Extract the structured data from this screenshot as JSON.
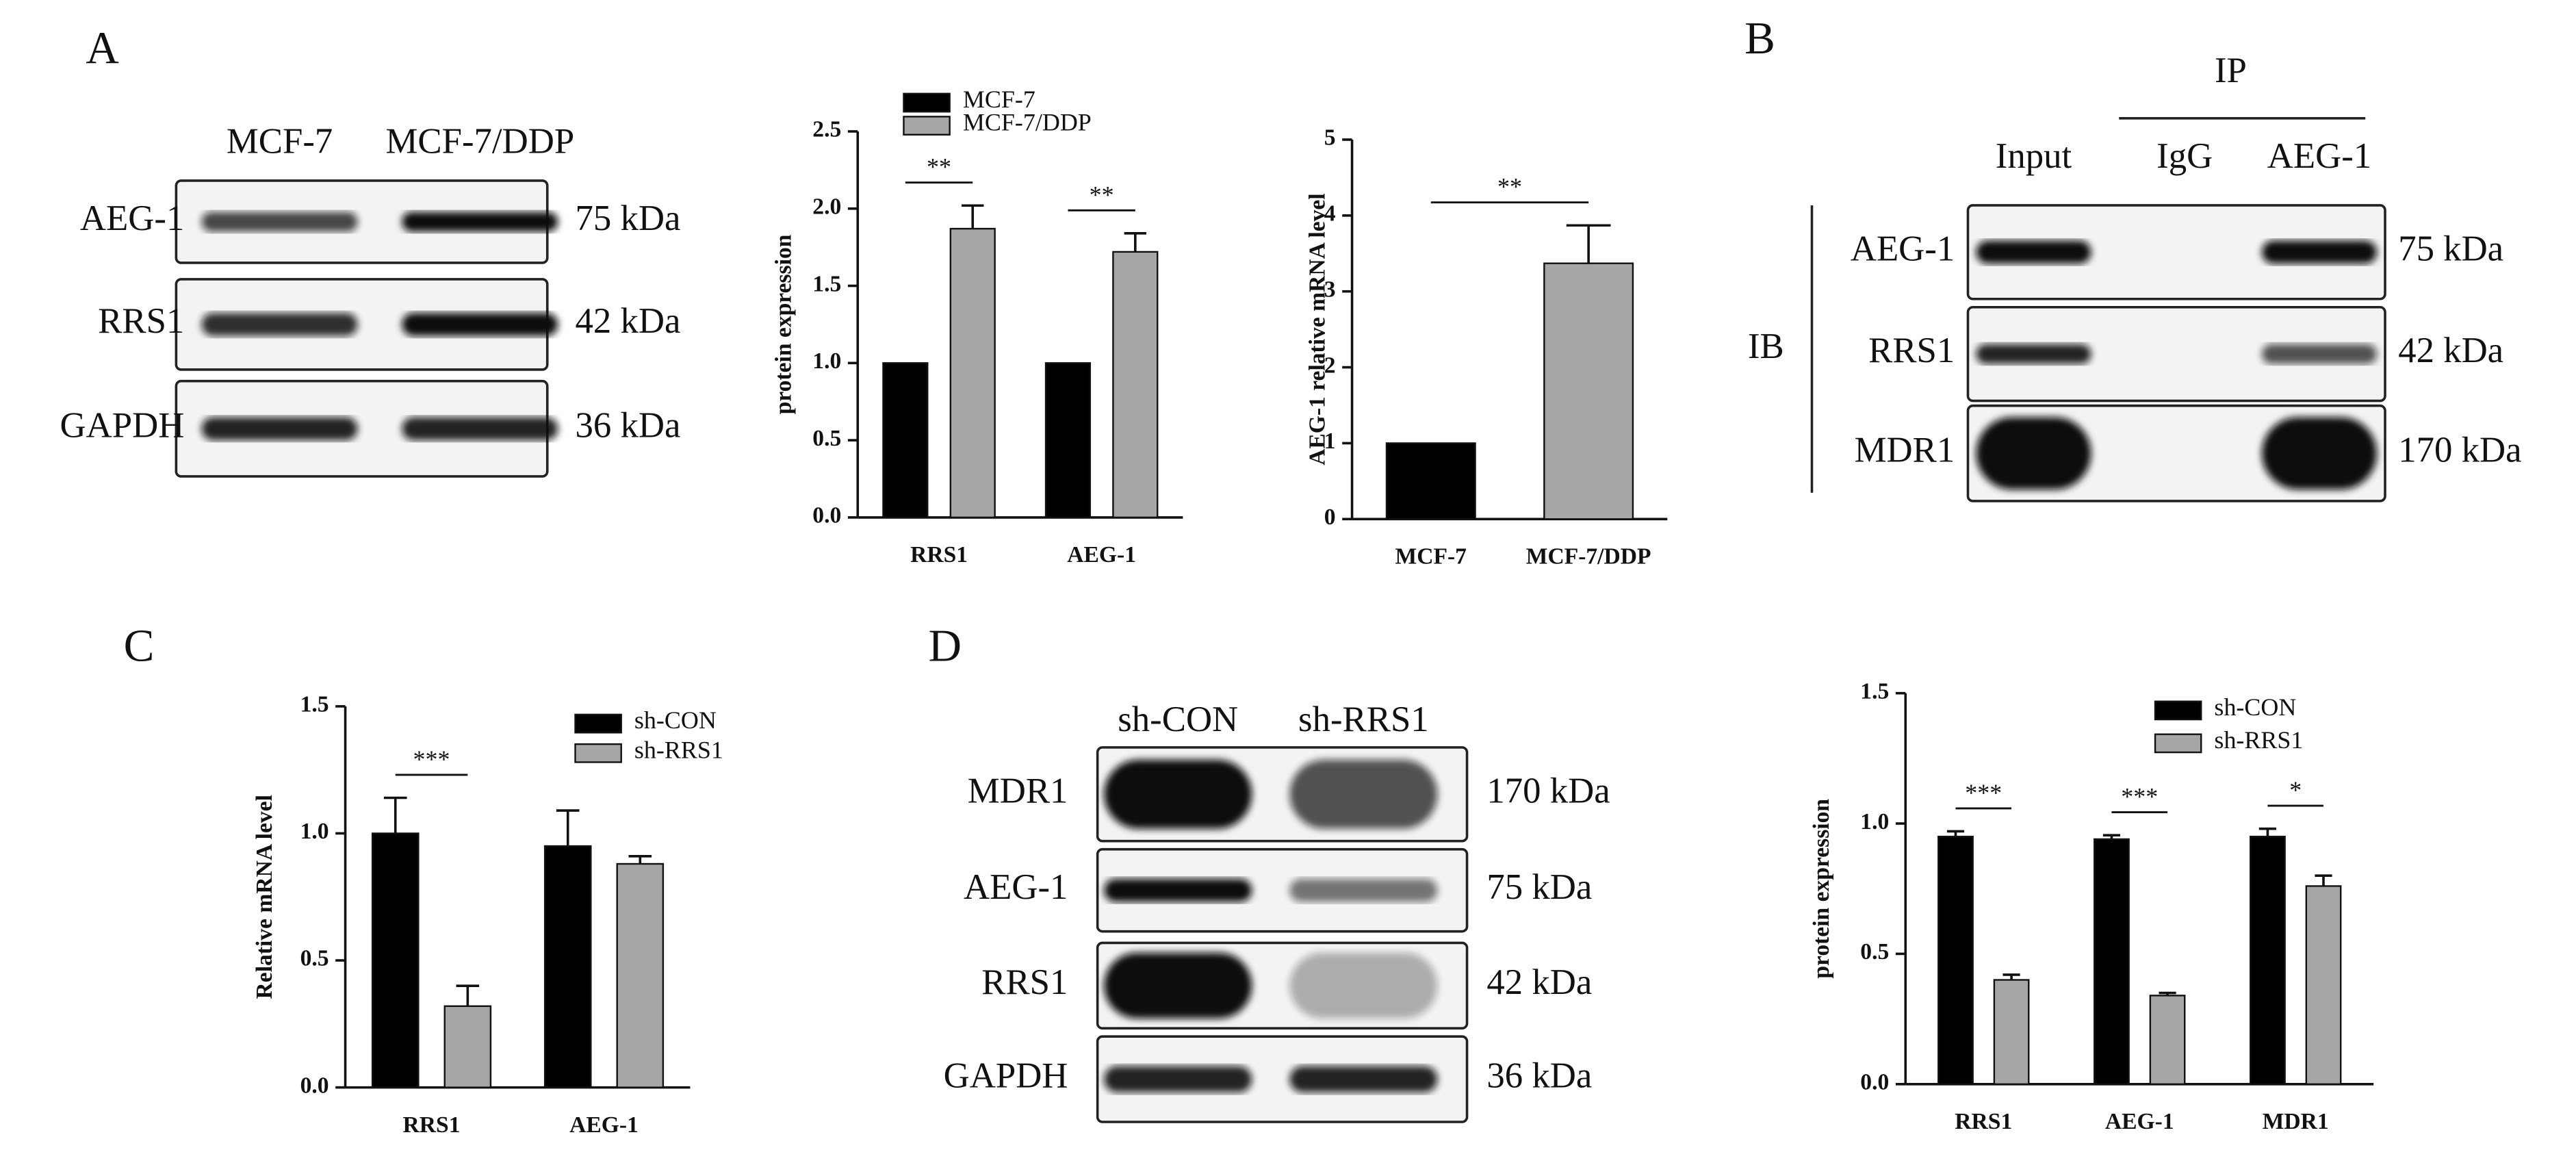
{
  "panels": {
    "A": {
      "letter": "A",
      "blot": {
        "lanes": [
          "MCF-7",
          "MCF-7/DDP"
        ],
        "rows": [
          {
            "protein": "AEG-1",
            "size": "75 kDa"
          },
          {
            "protein": "RRS1",
            "size": "42 kDa"
          },
          {
            "protein": "GAPDH",
            "size": "36 kDa"
          }
        ]
      }
    },
    "B": {
      "letter": "B",
      "ip_label": "IP",
      "ib_label": "IB",
      "blot": {
        "lanes": [
          "Input",
          "IgG",
          "AEG-1"
        ],
        "rows": [
          {
            "protein": "AEG-1",
            "size": "75 kDa"
          },
          {
            "protein": "RRS1",
            "size": "42 kDa"
          },
          {
            "protein": "MDR1",
            "size": "170 kDa"
          }
        ]
      }
    },
    "C": {
      "letter": "C"
    },
    "D": {
      "letter": "D",
      "blot": {
        "lanes": [
          "sh-CON",
          "sh-RRS1"
        ],
        "rows": [
          {
            "protein": "MDR1",
            "size": "170 kDa"
          },
          {
            "protein": "AEG-1",
            "size": "75 kDa"
          },
          {
            "protein": "RRS1",
            "size": "42 kDa"
          },
          {
            "protein": "GAPDH",
            "size": "36 kDa"
          }
        ]
      }
    }
  },
  "chart_data": [
    {
      "type": "bar",
      "y_label": "protein expression",
      "categories": [
        "RRS1",
        "AEG-1"
      ],
      "series": [
        {
          "name": "MCF-7",
          "color": "#000000",
          "values": [
            1.0,
            1.0
          ],
          "errors": [
            null,
            null
          ]
        },
        {
          "name": "MCF-7/DDP",
          "color": "#a6a6a6",
          "values": [
            1.87,
            1.72
          ],
          "errors": [
            0.15,
            0.12
          ]
        }
      ],
      "ylim": [
        0,
        2.5
      ],
      "yticks": [
        {
          "value": 0,
          "label": "0.0"
        },
        {
          "value": 0.5,
          "label": "0.5"
        },
        {
          "value": 1,
          "label": "1.0"
        },
        {
          "value": 1.5,
          "label": "1.5"
        },
        {
          "value": 2,
          "label": "2.0"
        },
        {
          "value": 2.5,
          "label": "2.5"
        }
      ],
      "annotations": [
        "**",
        "**"
      ]
    },
    {
      "type": "bar",
      "y_label": "AEG-1 relative mRNA level",
      "categories": [
        "MCF-7",
        "MCF-7/DDP"
      ],
      "values": [
        1.0,
        3.37
      ],
      "errors": [
        null,
        0.5
      ],
      "colors": [
        "#000000",
        "#a6a6a6"
      ],
      "ylim": [
        0,
        5
      ],
      "yticks": [
        0,
        1,
        2,
        3,
        4,
        5
      ],
      "annotations": [
        "**"
      ]
    },
    {
      "type": "bar",
      "y_label": "Relative mRNA level",
      "categories": [
        "RRS1",
        "AEG-1"
      ],
      "series": [
        {
          "name": "sh-CON",
          "color": "#000000",
          "values": [
            1.0,
            0.95
          ],
          "errors": [
            0.14,
            0.14
          ]
        },
        {
          "name": "sh-RRS1",
          "color": "#a6a6a6",
          "values": [
            0.32,
            0.88
          ],
          "errors": [
            0.08,
            0.03
          ]
        }
      ],
      "ylim": [
        0,
        1.5
      ],
      "yticks": [
        {
          "value": 0,
          "label": "0.0"
        },
        {
          "value": 0.5,
          "label": "0.5"
        },
        {
          "value": 1,
          "label": "1.0"
        },
        {
          "value": 1.5,
          "label": "1.5"
        }
      ],
      "annotations": [
        "***"
      ]
    },
    {
      "type": "bar",
      "y_label": "protein expression",
      "categories": [
        "RRS1",
        "AEG-1",
        "MDR1"
      ],
      "series": [
        {
          "name": "sh-CON",
          "color": "#000000",
          "values": [
            0.95,
            0.94,
            0.95
          ],
          "errors": [
            0.02,
            0.015,
            0.03
          ]
        },
        {
          "name": "sh-RRS1",
          "color": "#a6a6a6",
          "values": [
            0.4,
            0.34,
            0.76
          ],
          "errors": [
            0.02,
            0.01,
            0.04
          ]
        }
      ],
      "ylim": [
        0,
        1.5
      ],
      "yticks": [
        {
          "value": 0,
          "label": "0.0"
        },
        {
          "value": 0.5,
          "label": "0.5"
        },
        {
          "value": 1,
          "label": "1.0"
        },
        {
          "value": 1.5,
          "label": "1.5"
        }
      ],
      "annotations": [
        "***",
        "***",
        "*"
      ]
    }
  ]
}
